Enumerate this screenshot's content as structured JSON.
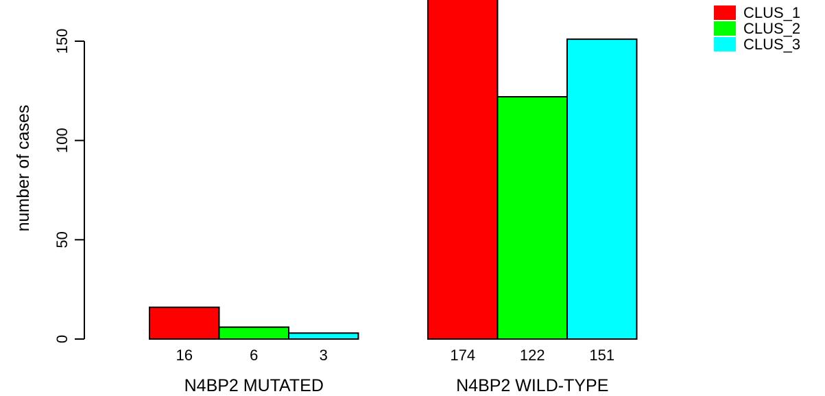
{
  "chart_data": {
    "type": "bar",
    "ylabel": "number of cases",
    "ylim": [
      0,
      174
    ],
    "yticks": [
      0,
      50,
      100,
      150
    ],
    "groups": [
      {
        "label": "N4BP2 MUTATED",
        "values": [
          16,
          6,
          3
        ],
        "value_labels": [
          "16",
          "6",
          "3"
        ]
      },
      {
        "label": "N4BP2 WILD-TYPE",
        "values": [
          174,
          122,
          151
        ],
        "value_labels": [
          "174",
          "122",
          "151"
        ]
      }
    ],
    "series": [
      {
        "name": "CLUS_1",
        "color": "#ff0000"
      },
      {
        "name": "CLUS_2",
        "color": "#00ff00"
      },
      {
        "name": "CLUS_3",
        "color": "#00ffff"
      }
    ],
    "legend_position": "top-right",
    "grid": false
  }
}
